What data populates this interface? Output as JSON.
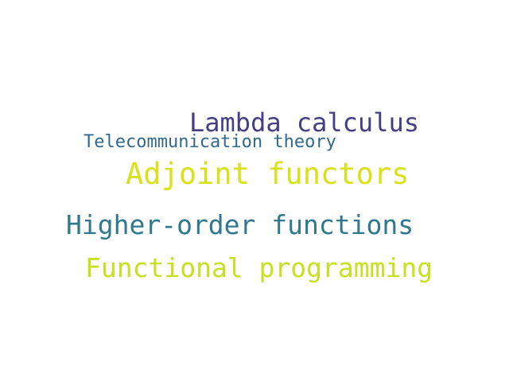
{
  "words": [
    {
      "text": "Lambda calculus",
      "color": "#433e85"
    },
    {
      "text": "Telecommunication theory",
      "color": "#31688e"
    },
    {
      "text": "Adjoint functors",
      "color": "#d8e219"
    },
    {
      "text": "Higher-order functions",
      "color": "#2f788e"
    },
    {
      "text": "Functional programming",
      "color": "#c7e020"
    }
  ]
}
